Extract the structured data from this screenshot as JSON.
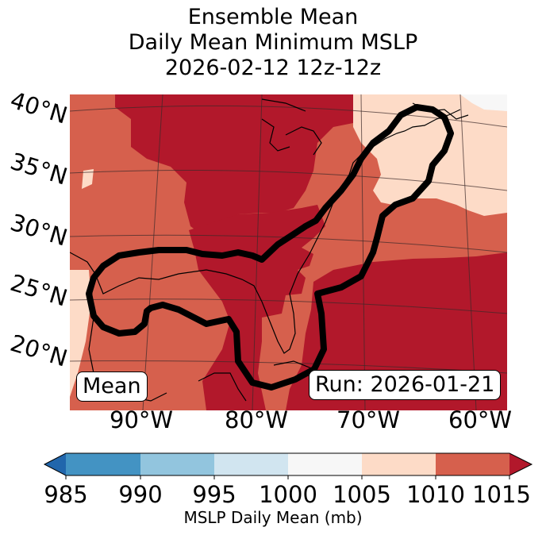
{
  "title": {
    "line1": "Ensemble Mean",
    "line2": "Daily Mean Minimum MSLP",
    "line3": "2026-02-12 12z-12z"
  },
  "map": {
    "lat_labels": [
      "40°N",
      "35°N",
      "30°N",
      "25°N",
      "20°N"
    ],
    "lon_labels": [
      "90°W",
      "80°W",
      "70°W",
      "60°W"
    ],
    "left_box": "Mean",
    "right_box": "Run: 2026-01-21"
  },
  "colorbar": {
    "ticks": [
      "985",
      "990",
      "995",
      "1000",
      "1005",
      "1010",
      "1015"
    ],
    "label": "MSLP Daily Mean (mb)",
    "colors": {
      "below": "#2166ac",
      "c985_990": "#4393c3",
      "c990_995": "#92c5de",
      "c995_1000": "#d1e5f0",
      "c1000_1005": "#f7f7f7",
      "c1005_1010": "#fddbc7",
      "c1010_1015": "#d6604d",
      "above": "#b2182b"
    }
  }
}
